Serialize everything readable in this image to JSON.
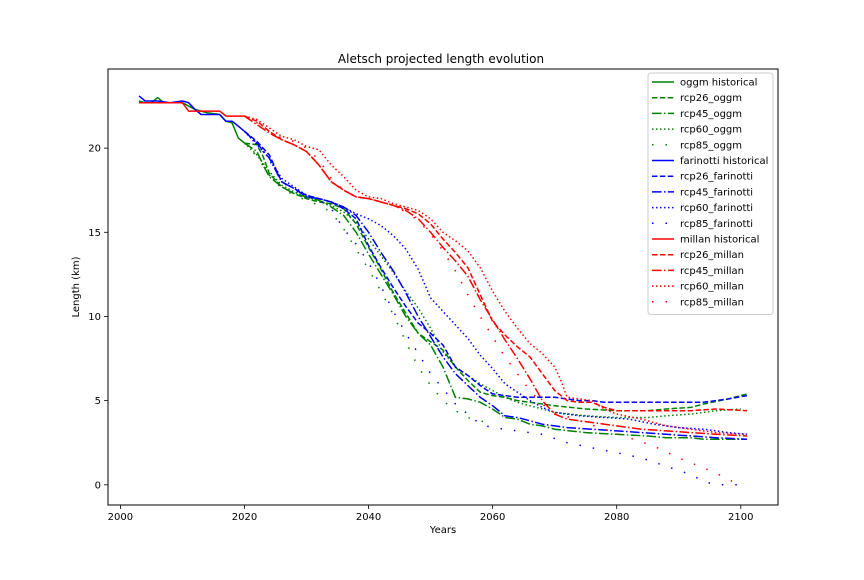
{
  "chart_data": {
    "type": "line",
    "title": "Aletsch projected length evolution",
    "xlabel": "Years",
    "ylabel": "Length (km)",
    "xlim": [
      1998,
      2106
    ],
    "ylim": [
      -1.2,
      24.7
    ],
    "xticks": [
      2000,
      2020,
      2040,
      2060,
      2080,
      2100
    ],
    "yticks": [
      0,
      5,
      10,
      15,
      20
    ],
    "grid": false,
    "legend_position": "top-right",
    "series": [
      {
        "name": "oggm historical",
        "color": "#008000",
        "dash": "solid",
        "x": [
          2003,
          2004,
          2005,
          2006,
          2007,
          2008,
          2010,
          2012,
          2014,
          2016,
          2017,
          2018,
          2019,
          2020
        ],
        "y": [
          22.8,
          22.7,
          22.7,
          23.0,
          22.7,
          22.7,
          22.7,
          22.3,
          22.1,
          22.0,
          21.6,
          21.5,
          20.6,
          20.3
        ]
      },
      {
        "name": "rcp26_oggm",
        "color": "#008000",
        "dash": "dashed",
        "x": [
          2020,
          2022,
          2023,
          2024,
          2026,
          2028,
          2030,
          2032,
          2034,
          2036,
          2038,
          2040,
          2042,
          2044,
          2046,
          2048,
          2050,
          2052,
          2054,
          2056,
          2058,
          2060,
          2062,
          2064,
          2066,
          2068,
          2070,
          2075,
          2080,
          2085,
          2088,
          2092,
          2094,
          2098,
          2101
        ],
        "y": [
          20.3,
          20.2,
          19.5,
          18.5,
          17.7,
          17.3,
          17.0,
          16.8,
          16.7,
          16.4,
          15.5,
          14.1,
          12.8,
          11.4,
          10.2,
          9.0,
          8.5,
          8.0,
          7.0,
          6.2,
          5.5,
          5.3,
          5.2,
          5.0,
          4.9,
          4.8,
          4.7,
          4.5,
          4.4,
          4.4,
          4.5,
          4.6,
          4.8,
          5.1,
          5.4
        ]
      },
      {
        "name": "rcp45_oggm",
        "color": "#008000",
        "dash": "dashdot",
        "x": [
          2020,
          2022,
          2023,
          2024,
          2026,
          2028,
          2030,
          2032,
          2034,
          2036,
          2038,
          2040,
          2042,
          2044,
          2046,
          2048,
          2050,
          2052,
          2054,
          2056,
          2058,
          2060,
          2062,
          2064,
          2066,
          2068,
          2070,
          2075,
          2080,
          2085,
          2088,
          2090,
          2092,
          2094,
          2098,
          2101
        ],
        "y": [
          20.3,
          19.8,
          19.0,
          18.3,
          17.7,
          17.3,
          17.1,
          16.9,
          16.5,
          16.0,
          15.0,
          13.7,
          12.5,
          11.3,
          10.0,
          9.0,
          8.3,
          7.0,
          5.2,
          5.1,
          4.9,
          4.5,
          4.0,
          3.9,
          3.6,
          3.5,
          3.3,
          3.1,
          3.0,
          2.9,
          2.8,
          2.8,
          2.8,
          2.7,
          2.7,
          2.7
        ]
      },
      {
        "name": "rcp60_oggm",
        "color": "#008000",
        "dash": "dotted",
        "x": [
          2020,
          2022,
          2024,
          2026,
          2028,
          2030,
          2032,
          2034,
          2036,
          2038,
          2040,
          2042,
          2044,
          2046,
          2048,
          2050,
          2052,
          2054,
          2056,
          2058,
          2060,
          2062,
          2064,
          2066,
          2068,
          2070,
          2075,
          2080,
          2085,
          2088,
          2092,
          2096,
          2100
        ],
        "y": [
          20.3,
          19.6,
          18.6,
          17.8,
          17.4,
          17.1,
          16.9,
          16.6,
          16.2,
          15.6,
          14.6,
          13.6,
          12.6,
          11.5,
          10.5,
          9.3,
          7.9,
          7.0,
          6.5,
          6.0,
          5.6,
          5.2,
          4.9,
          4.7,
          4.5,
          4.3,
          4.1,
          4.0,
          4.0,
          4.1,
          4.2,
          4.4,
          4.5
        ]
      },
      {
        "name": "rcp85_oggm",
        "color": "#008000",
        "dash": "sparse",
        "x": [
          2020,
          2022,
          2024,
          2026,
          2028,
          2030,
          2032,
          2034,
          2036,
          2038,
          2040,
          2042,
          2044,
          2046,
          2048,
          2050,
          2052,
          2054,
          2056,
          2058,
          2060
        ],
        "y": [
          20.3,
          19.5,
          18.4,
          17.6,
          17.2,
          16.9,
          16.6,
          16.2,
          15.2,
          14.0,
          12.8,
          11.5,
          10.1,
          8.5,
          7.0,
          5.9,
          5.0,
          4.4,
          4.0,
          3.8,
          3.6
        ]
      },
      {
        "name": "farinotti historical",
        "color": "#0000ff",
        "dash": "solid",
        "x": [
          2003,
          2004,
          2005,
          2006,
          2008,
          2010,
          2011,
          2012,
          2013,
          2016,
          2017,
          2018,
          2019,
          2020
        ],
        "y": [
          23.1,
          22.8,
          22.8,
          22.8,
          22.7,
          22.8,
          22.7,
          22.3,
          22.0,
          22.0,
          21.6,
          21.6,
          21.3,
          21.0
        ]
      },
      {
        "name": "rcp26_farinotti",
        "color": "#0000ff",
        "dash": "dashed",
        "x": [
          2020,
          2022,
          2024,
          2025,
          2026,
          2028,
          2030,
          2032,
          2034,
          2036,
          2038,
          2040,
          2042,
          2044,
          2046,
          2048,
          2050,
          2052,
          2054,
          2056,
          2058,
          2060,
          2062,
          2064,
          2066,
          2068,
          2070,
          2074,
          2076,
          2078,
          2080,
          2084,
          2086,
          2090,
          2094,
          2098,
          2101
        ],
        "y": [
          21.0,
          20.4,
          19.6,
          18.8,
          18.0,
          17.6,
          17.2,
          17.0,
          16.8,
          16.4,
          15.8,
          14.2,
          12.9,
          11.7,
          10.6,
          9.6,
          9.0,
          8.3,
          7.0,
          6.5,
          5.9,
          5.4,
          5.3,
          5.2,
          5.2,
          5.2,
          5.2,
          5.0,
          5.0,
          4.9,
          4.9,
          4.9,
          4.9,
          4.9,
          4.9,
          5.1,
          5.3
        ]
      },
      {
        "name": "rcp45_farinotti",
        "color": "#0000ff",
        "dash": "dashdot",
        "x": [
          2020,
          2022,
          2024,
          2026,
          2028,
          2030,
          2032,
          2034,
          2036,
          2038,
          2040,
          2042,
          2044,
          2046,
          2048,
          2050,
          2052,
          2054,
          2056,
          2058,
          2060,
          2062,
          2064,
          2066,
          2068,
          2070,
          2072,
          2076,
          2080,
          2084,
          2088,
          2092,
          2096,
          2101
        ],
        "y": [
          21.0,
          20.3,
          19.4,
          18.0,
          17.6,
          17.1,
          17.0,
          16.8,
          16.5,
          16.0,
          15.0,
          13.8,
          12.7,
          11.4,
          10.0,
          8.8,
          7.6,
          6.6,
          5.9,
          5.2,
          4.7,
          4.1,
          4.0,
          3.8,
          3.6,
          3.5,
          3.4,
          3.3,
          3.2,
          3.1,
          3.0,
          2.9,
          2.8,
          2.7
        ]
      },
      {
        "name": "rcp60_farinotti",
        "color": "#0000ff",
        "dash": "dotted",
        "x": [
          2020,
          2022,
          2024,
          2026,
          2028,
          2030,
          2032,
          2034,
          2036,
          2038,
          2040,
          2042,
          2044,
          2046,
          2048,
          2050,
          2052,
          2054,
          2056,
          2058,
          2060,
          2062,
          2064,
          2066,
          2068,
          2070,
          2074,
          2078,
          2082,
          2086,
          2090,
          2094,
          2098,
          2101
        ],
        "y": [
          21.0,
          20.2,
          19.4,
          18.2,
          17.7,
          17.2,
          17.0,
          16.8,
          16.5,
          16.1,
          15.8,
          15.4,
          14.8,
          14.0,
          12.8,
          11.1,
          10.3,
          9.5,
          8.7,
          7.7,
          6.9,
          6.0,
          5.5,
          5.0,
          4.6,
          4.3,
          4.1,
          4.0,
          3.9,
          3.6,
          3.4,
          3.3,
          3.1,
          3.0
        ]
      },
      {
        "name": "rcp85_farinotti",
        "color": "#0000ff",
        "dash": "sparse",
        "x": [
          2020,
          2022,
          2024,
          2026,
          2028,
          2030,
          2032,
          2034,
          2036,
          2038,
          2040,
          2042,
          2044,
          2046,
          2048,
          2050,
          2052,
          2054,
          2056,
          2058,
          2060,
          2064,
          2068,
          2072,
          2076,
          2080,
          2084,
          2088,
          2092,
          2094,
          2096,
          2100
        ],
        "y": [
          21.0,
          20.3,
          19.3,
          18.0,
          17.5,
          17.1,
          16.9,
          16.4,
          15.2,
          14.3,
          13.2,
          11.8,
          10.3,
          9.0,
          7.8,
          6.6,
          5.7,
          4.8,
          4.2,
          3.6,
          3.4,
          3.2,
          3.0,
          2.5,
          2.2,
          1.9,
          1.6,
          1.1,
          0.6,
          0.2,
          0.0,
          0.0
        ]
      },
      {
        "name": "millan historical",
        "color": "#ff0000",
        "dash": "solid",
        "x": [
          2003,
          2004,
          2006,
          2008,
          2010,
          2011,
          2012,
          2014,
          2016,
          2017,
          2020
        ],
        "y": [
          22.7,
          22.7,
          22.7,
          22.7,
          22.7,
          22.2,
          22.2,
          22.2,
          22.2,
          21.9,
          21.9
        ]
      },
      {
        "name": "rcp26_millan",
        "color": "#ff0000",
        "dash": "dashed",
        "x": [
          2020,
          2022,
          2024,
          2026,
          2028,
          2030,
          2032,
          2034,
          2036,
          2038,
          2040,
          2042,
          2044,
          2046,
          2048,
          2050,
          2052,
          2054,
          2056,
          2058,
          2060,
          2062,
          2064,
          2066,
          2068,
          2070,
          2072,
          2074,
          2076,
          2078,
          2080,
          2084,
          2088,
          2092,
          2096,
          2101
        ],
        "y": [
          21.9,
          21.6,
          21.0,
          20.5,
          20.2,
          19.8,
          19.0,
          18.0,
          17.5,
          17.1,
          17.0,
          16.8,
          16.6,
          16.4,
          16.1,
          15.5,
          14.6,
          13.8,
          12.9,
          11.3,
          9.7,
          8.9,
          8.2,
          7.6,
          6.6,
          5.6,
          5.0,
          4.9,
          4.9,
          4.6,
          4.4,
          4.4,
          4.4,
          4.4,
          4.5,
          4.4
        ]
      },
      {
        "name": "rcp45_millan",
        "color": "#ff0000",
        "dash": "dashdot",
        "x": [
          2020,
          2022,
          2024,
          2026,
          2028,
          2030,
          2032,
          2034,
          2036,
          2038,
          2040,
          2042,
          2044,
          2046,
          2048,
          2050,
          2052,
          2054,
          2056,
          2058,
          2060,
          2062,
          2064,
          2066,
          2068,
          2070,
          2072,
          2076,
          2080,
          2084,
          2088,
          2092,
          2096,
          2101
        ],
        "y": [
          21.9,
          21.4,
          20.9,
          20.5,
          20.2,
          19.8,
          19.0,
          18.0,
          17.5,
          17.1,
          17.0,
          16.8,
          16.6,
          16.3,
          15.8,
          15.0,
          14.1,
          13.3,
          12.4,
          11.0,
          9.8,
          8.6,
          7.5,
          6.3,
          5.0,
          4.2,
          3.9,
          3.7,
          3.5,
          3.3,
          3.2,
          3.1,
          3.0,
          2.9
        ]
      },
      {
        "name": "rcp60_millan",
        "color": "#ff0000",
        "dash": "dotted",
        "x": [
          2020,
          2022,
          2024,
          2026,
          2028,
          2030,
          2032,
          2034,
          2036,
          2038,
          2040,
          2042,
          2044,
          2046,
          2048,
          2050,
          2052,
          2054,
          2056,
          2058,
          2060,
          2062,
          2064,
          2066,
          2068,
          2070,
          2071,
          2072,
          2074,
          2076,
          2078,
          2080,
          2084,
          2088,
          2092,
          2096,
          2101
        ],
        "y": [
          21.9,
          21.7,
          21.2,
          20.7,
          20.5,
          20.1,
          19.9,
          19.0,
          18.3,
          17.5,
          17.1,
          17.0,
          16.7,
          16.5,
          16.3,
          15.8,
          15.0,
          14.5,
          13.9,
          12.9,
          11.5,
          10.3,
          9.3,
          8.4,
          7.8,
          7.0,
          6.2,
          5.2,
          5.1,
          5.0,
          4.5,
          4.2,
          3.9,
          3.5,
          3.3,
          3.1,
          3.0
        ]
      },
      {
        "name": "rcp85_millan",
        "color": "#ff0000",
        "dash": "sparse",
        "x": [
          2020,
          2022,
          2024,
          2026,
          2028,
          2030,
          2032,
          2034,
          2036,
          2038,
          2040,
          2042,
          2044,
          2046,
          2048,
          2050,
          2052,
          2054,
          2056,
          2058,
          2060,
          2062,
          2064,
          2066,
          2068,
          2070,
          2074,
          2078,
          2082,
          2086,
          2090,
          2094,
          2096,
          2098,
          2100
        ],
        "y": [
          21.9,
          21.5,
          21.0,
          20.6,
          20.4,
          20.0,
          19.3,
          18.2,
          17.5,
          17.1,
          17.0,
          16.8,
          16.6,
          16.2,
          15.7,
          14.9,
          13.9,
          12.7,
          11.3,
          10.0,
          8.8,
          7.6,
          6.6,
          5.6,
          4.8,
          4.3,
          3.8,
          3.3,
          2.8,
          2.3,
          1.6,
          1.0,
          0.7,
          0.3,
          0.0
        ]
      }
    ]
  }
}
